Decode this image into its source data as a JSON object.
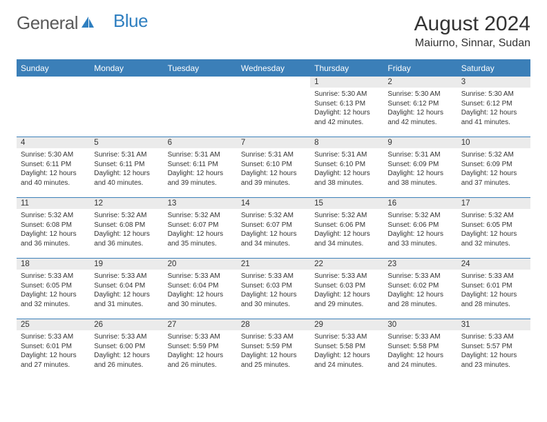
{
  "logo": {
    "text1": "General",
    "text2": "Blue"
  },
  "title": "August 2024",
  "location": "Maiurno, Sinnar, Sudan",
  "colors": {
    "header_bg": "#3b7fb8",
    "header_text": "#ffffff",
    "daynum_bg": "#ebebeb",
    "border": "#3b7fb8",
    "logo_gray": "#5a5a5a",
    "logo_blue": "#2f7fc0",
    "text": "#333333",
    "bg": "#ffffff"
  },
  "daysOfWeek": [
    "Sunday",
    "Monday",
    "Tuesday",
    "Wednesday",
    "Thursday",
    "Friday",
    "Saturday"
  ],
  "weeks": [
    [
      {
        "n": "",
        "sr": "",
        "ss": "",
        "dl": ""
      },
      {
        "n": "",
        "sr": "",
        "ss": "",
        "dl": ""
      },
      {
        "n": "",
        "sr": "",
        "ss": "",
        "dl": ""
      },
      {
        "n": "",
        "sr": "",
        "ss": "",
        "dl": ""
      },
      {
        "n": "1",
        "sr": "5:30 AM",
        "ss": "6:13 PM",
        "dl": "12 hours and 42 minutes."
      },
      {
        "n": "2",
        "sr": "5:30 AM",
        "ss": "6:12 PM",
        "dl": "12 hours and 42 minutes."
      },
      {
        "n": "3",
        "sr": "5:30 AM",
        "ss": "6:12 PM",
        "dl": "12 hours and 41 minutes."
      }
    ],
    [
      {
        "n": "4",
        "sr": "5:30 AM",
        "ss": "6:11 PM",
        "dl": "12 hours and 40 minutes."
      },
      {
        "n": "5",
        "sr": "5:31 AM",
        "ss": "6:11 PM",
        "dl": "12 hours and 40 minutes."
      },
      {
        "n": "6",
        "sr": "5:31 AM",
        "ss": "6:11 PM",
        "dl": "12 hours and 39 minutes."
      },
      {
        "n": "7",
        "sr": "5:31 AM",
        "ss": "6:10 PM",
        "dl": "12 hours and 39 minutes."
      },
      {
        "n": "8",
        "sr": "5:31 AM",
        "ss": "6:10 PM",
        "dl": "12 hours and 38 minutes."
      },
      {
        "n": "9",
        "sr": "5:31 AM",
        "ss": "6:09 PM",
        "dl": "12 hours and 38 minutes."
      },
      {
        "n": "10",
        "sr": "5:32 AM",
        "ss": "6:09 PM",
        "dl": "12 hours and 37 minutes."
      }
    ],
    [
      {
        "n": "11",
        "sr": "5:32 AM",
        "ss": "6:08 PM",
        "dl": "12 hours and 36 minutes."
      },
      {
        "n": "12",
        "sr": "5:32 AM",
        "ss": "6:08 PM",
        "dl": "12 hours and 36 minutes."
      },
      {
        "n": "13",
        "sr": "5:32 AM",
        "ss": "6:07 PM",
        "dl": "12 hours and 35 minutes."
      },
      {
        "n": "14",
        "sr": "5:32 AM",
        "ss": "6:07 PM",
        "dl": "12 hours and 34 minutes."
      },
      {
        "n": "15",
        "sr": "5:32 AM",
        "ss": "6:06 PM",
        "dl": "12 hours and 34 minutes."
      },
      {
        "n": "16",
        "sr": "5:32 AM",
        "ss": "6:06 PM",
        "dl": "12 hours and 33 minutes."
      },
      {
        "n": "17",
        "sr": "5:32 AM",
        "ss": "6:05 PM",
        "dl": "12 hours and 32 minutes."
      }
    ],
    [
      {
        "n": "18",
        "sr": "5:33 AM",
        "ss": "6:05 PM",
        "dl": "12 hours and 32 minutes."
      },
      {
        "n": "19",
        "sr": "5:33 AM",
        "ss": "6:04 PM",
        "dl": "12 hours and 31 minutes."
      },
      {
        "n": "20",
        "sr": "5:33 AM",
        "ss": "6:04 PM",
        "dl": "12 hours and 30 minutes."
      },
      {
        "n": "21",
        "sr": "5:33 AM",
        "ss": "6:03 PM",
        "dl": "12 hours and 30 minutes."
      },
      {
        "n": "22",
        "sr": "5:33 AM",
        "ss": "6:03 PM",
        "dl": "12 hours and 29 minutes."
      },
      {
        "n": "23",
        "sr": "5:33 AM",
        "ss": "6:02 PM",
        "dl": "12 hours and 28 minutes."
      },
      {
        "n": "24",
        "sr": "5:33 AM",
        "ss": "6:01 PM",
        "dl": "12 hours and 28 minutes."
      }
    ],
    [
      {
        "n": "25",
        "sr": "5:33 AM",
        "ss": "6:01 PM",
        "dl": "12 hours and 27 minutes."
      },
      {
        "n": "26",
        "sr": "5:33 AM",
        "ss": "6:00 PM",
        "dl": "12 hours and 26 minutes."
      },
      {
        "n": "27",
        "sr": "5:33 AM",
        "ss": "5:59 PM",
        "dl": "12 hours and 26 minutes."
      },
      {
        "n": "28",
        "sr": "5:33 AM",
        "ss": "5:59 PM",
        "dl": "12 hours and 25 minutes."
      },
      {
        "n": "29",
        "sr": "5:33 AM",
        "ss": "5:58 PM",
        "dl": "12 hours and 24 minutes."
      },
      {
        "n": "30",
        "sr": "5:33 AM",
        "ss": "5:58 PM",
        "dl": "12 hours and 24 minutes."
      },
      {
        "n": "31",
        "sr": "5:33 AM",
        "ss": "5:57 PM",
        "dl": "12 hours and 23 minutes."
      }
    ]
  ],
  "labels": {
    "sunrise": "Sunrise:",
    "sunset": "Sunset:",
    "daylight": "Daylight:"
  }
}
